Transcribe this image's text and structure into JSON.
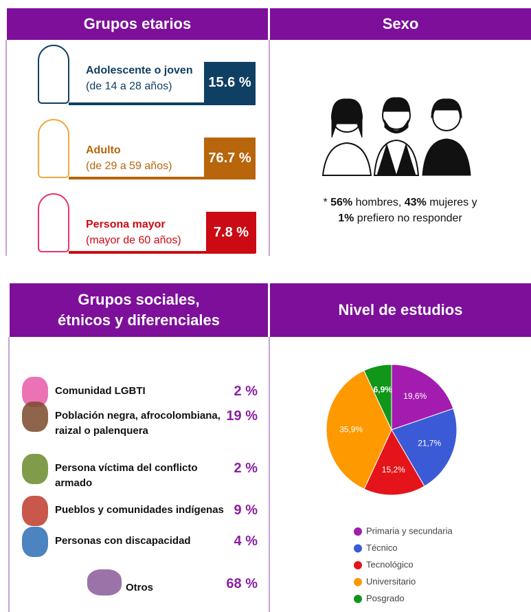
{
  "age_section": {
    "title": "Grupos etarios",
    "rows": [
      {
        "label": "Adolescente o joven",
        "sub": "(de 14 a 28 años)",
        "value": "15.6 %",
        "color": "#0f3f63"
      },
      {
        "label": "Adulto",
        "sub": "(de 29 a 59 años)",
        "value": "76.7 %",
        "color": "#b8650c"
      },
      {
        "label": "Persona mayor",
        "sub": "(mayor de 60 años)",
        "value": "7.8 %",
        "color": "#cc0a14"
      }
    ]
  },
  "sex_section": {
    "title": "Sexo",
    "parts": [
      {
        "text": "* ",
        "bold": false
      },
      {
        "text": "56%",
        "bold": true
      },
      {
        "text": " hombres, ",
        "bold": false
      },
      {
        "text": "43%",
        "bold": true
      },
      {
        "text": " mujeres y ",
        "bold": false
      },
      {
        "text": "1%",
        "bold": true
      },
      {
        "text": " prefiero no responder",
        "bold": false
      }
    ]
  },
  "social_section": {
    "title": [
      "Grupos sociales,",
      "étnicos y diferenciales"
    ],
    "rows": [
      {
        "lines": [
          "Comunidad LGBTI"
        ],
        "value": "2 %"
      },
      {
        "lines": [
          "Población negra, afrocolombiana,",
          "raizal o palenquera"
        ],
        "value": "19 %"
      },
      {
        "lines": [
          "Persona víctima del conflicto",
          "armado"
        ],
        "value": "2 %"
      },
      {
        "lines": [
          "Pueblos y comunidades indígenas"
        ],
        "value": "9 %"
      },
      {
        "lines": [
          "Personas con discapacidad"
        ],
        "value": "4 %"
      },
      {
        "lines": [
          "Otros"
        ],
        "value": "68 %"
      }
    ]
  },
  "chart_data": {
    "type": "pie",
    "title": "Nivel de estudios",
    "categories": [
      "Primaria y secundaria",
      "Técnico",
      "Tecnológico",
      "Universitario",
      "Posgrado"
    ],
    "values": [
      19.6,
      21.7,
      15.2,
      35.9,
      6.9
    ],
    "value_labels": [
      "19,6%",
      "21,7%",
      "15,2%",
      "35,9%",
      "6,9%"
    ],
    "colors": [
      "#a31caf",
      "#3b5bd6",
      "#e5141a",
      "#ff9900",
      "#109618"
    ]
  }
}
